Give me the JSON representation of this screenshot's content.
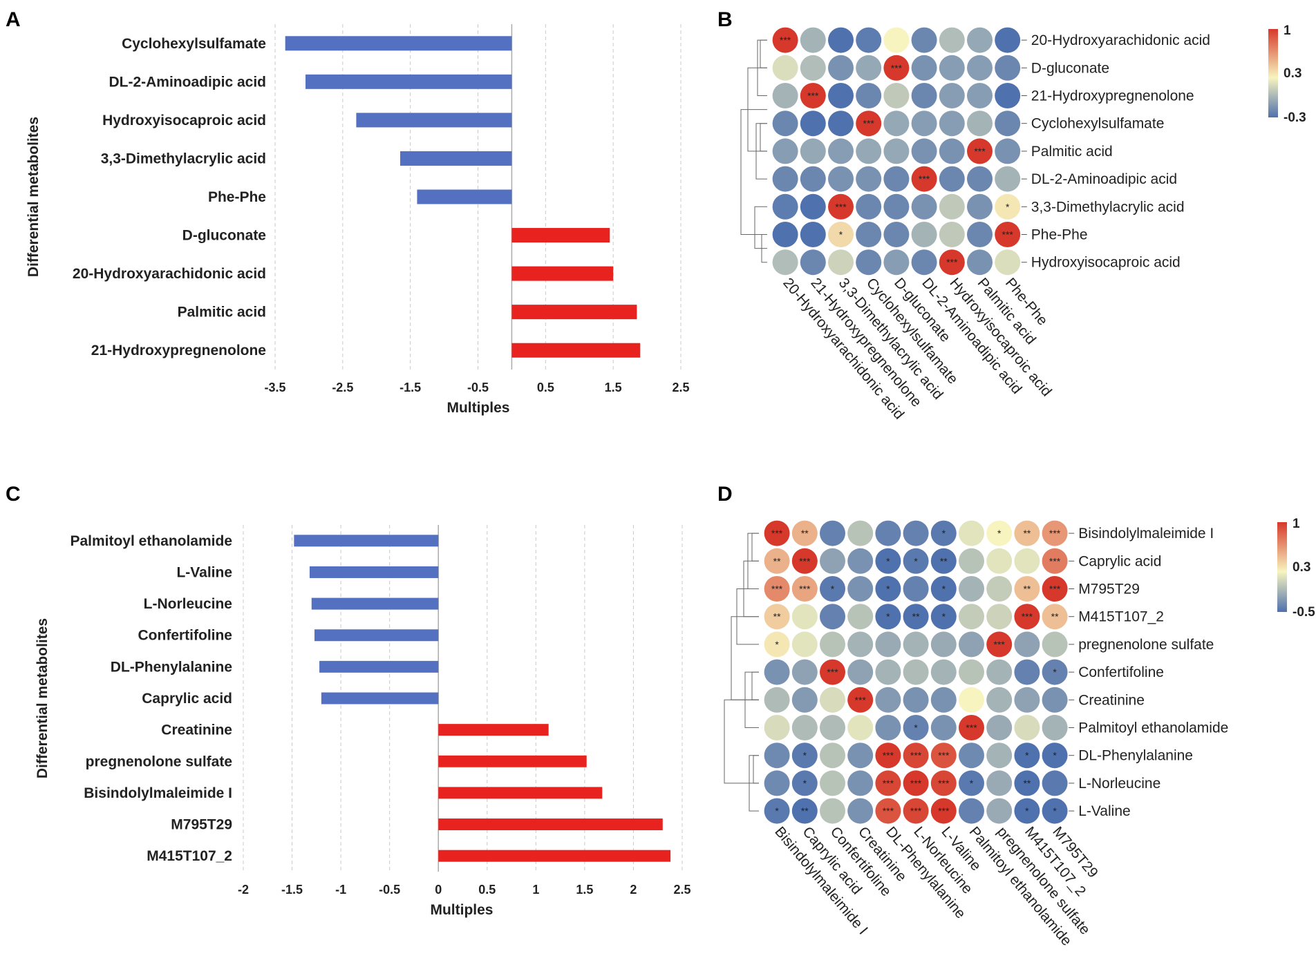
{
  "panels": {
    "A": "A",
    "B": "B",
    "C": "C",
    "D": "D"
  },
  "chart_data": [
    {
      "panel": "A",
      "type": "bar",
      "orientation": "horizontal",
      "title": "",
      "xlabel": "Multiples",
      "ylabel": "Differential metabolites",
      "categories": [
        "Cyclohexylsulfamate",
        "DL-2-Aminoadipic acid",
        "Hydroxyisocaproic acid",
        "3,3-Dimethylacrylic acid",
        "Phe-Phe",
        "D-gluconate",
        "20-Hydroxyarachidonic acid",
        "Palmitic acid",
        "21-Hydroxypregnenolone"
      ],
      "values": [
        -3.35,
        -3.05,
        -2.3,
        -1.65,
        -1.4,
        1.45,
        1.5,
        1.85,
        1.9
      ],
      "xlim": [
        -3.5,
        2.5
      ],
      "xticks": [
        -3.5,
        -2.5,
        -1.5,
        -0.5,
        0.5,
        1.5,
        2.5
      ],
      "xtick_labels": [
        "-3.5",
        "-2.5",
        "-1.5",
        "-0.5",
        "0.5",
        "1.5",
        "2.5"
      ],
      "colors": {
        "negative": "#5470c0",
        "positive": "#e8221e"
      },
      "grid": true
    },
    {
      "panel": "B",
      "type": "heatmap",
      "style": "circle correlation",
      "rows": [
        "20-Hydroxyarachidonic acid",
        "D-gluconate",
        "21-Hydroxypregnenolone",
        "Cyclohexylsulfamate",
        "Palmitic acid",
        "DL-2-Aminoadipic acid",
        "3,3-Dimethylacrylic acid",
        "Phe-Phe",
        "Hydroxyisocaproic acid"
      ],
      "columns": [
        "20-Hydroxyarachidonic acid",
        "21-Hydroxypregnenolone",
        "3,3-Dimethylacrylic acid",
        "Cyclohexylsulfamate",
        "D-gluconate",
        "DL-2-Aminoadipic acid",
        "Hydroxyisocaproic acid",
        "Palmitic acid",
        "Phe-Phe"
      ],
      "values": [
        [
          1,
          0,
          -0.3,
          -0.25,
          0.3,
          -0.2,
          0.05,
          -0.05,
          -0.3
        ],
        [
          0.2,
          0.05,
          -0.15,
          -0.05,
          1,
          -0.15,
          -0.1,
          -0.1,
          -0.2
        ],
        [
          0,
          1,
          -0.35,
          -0.2,
          0.1,
          -0.2,
          -0.1,
          -0.1,
          -0.45
        ],
        [
          -0.2,
          -0.3,
          -0.3,
          1,
          -0.05,
          -0.1,
          -0.1,
          0,
          -0.2
        ],
        [
          -0.1,
          -0.05,
          -0.1,
          -0.05,
          -0.05,
          -0.15,
          -0.15,
          1,
          -0.15
        ],
        [
          -0.2,
          -0.2,
          -0.15,
          -0.15,
          -0.2,
          1,
          -0.2,
          -0.2,
          0
        ],
        [
          -0.25,
          -0.35,
          1,
          -0.2,
          -0.2,
          -0.15,
          0.1,
          -0.15,
          0.35
        ],
        [
          -0.3,
          -0.45,
          0.4,
          -0.2,
          -0.2,
          0,
          0.1,
          -0.2,
          1
        ],
        [
          0.05,
          -0.2,
          0.15,
          -0.2,
          -0.1,
          -0.2,
          1,
          -0.15,
          0.2
        ]
      ],
      "stars": [
        [
          "***",
          "",
          "",
          "",
          "",
          "",
          "",
          "",
          ""
        ],
        [
          "",
          "",
          "",
          "",
          "***",
          "",
          "",
          "",
          ""
        ],
        [
          "",
          "***",
          "",
          "",
          "",
          "",
          "",
          "",
          ""
        ],
        [
          "",
          "",
          "",
          "***",
          "",
          "",
          "",
          "",
          ""
        ],
        [
          "",
          "",
          "",
          "",
          "",
          "",
          "",
          "***",
          ""
        ],
        [
          "",
          "",
          "",
          "",
          "",
          "***",
          "",
          "",
          ""
        ],
        [
          "",
          "",
          "***",
          "",
          "",
          "",
          "",
          "",
          "*"
        ],
        [
          "",
          "",
          "*",
          "",
          "",
          "",
          "",
          "",
          "***"
        ],
        [
          "",
          "",
          "",
          "",
          "",
          "",
          "***",
          "",
          ""
        ]
      ],
      "colorbar": {
        "min": -0.3,
        "max": 1,
        "ticks": [
          "1",
          "0.3",
          "-0.3"
        ],
        "colors": [
          "#4f71ad",
          "#f7f4bf",
          "#d6392b"
        ]
      },
      "dendrogram": "rows"
    },
    {
      "panel": "C",
      "type": "bar",
      "orientation": "horizontal",
      "title": "",
      "xlabel": "Multiples",
      "ylabel": "Differential metabolites",
      "categories": [
        "Palmitoyl ethanolamide",
        "L-Valine",
        "L-Norleucine",
        "Confertifoline",
        "DL-Phenylalanine",
        "Caprylic acid",
        "Creatinine",
        "pregnenolone sulfate",
        "Bisindolylmaleimide I",
        "M795T29",
        "M415T107_2"
      ],
      "values": [
        -1.48,
        -1.32,
        -1.3,
        -1.27,
        -1.22,
        -1.2,
        1.13,
        1.52,
        1.68,
        2.3,
        2.38
      ],
      "xlim": [
        -2,
        2.5
      ],
      "xticks": [
        -2,
        -1.5,
        -1,
        -0.5,
        0,
        0.5,
        1,
        1.5,
        2,
        2.5
      ],
      "xtick_labels": [
        "-2",
        "-1.5",
        "-1",
        "-0.5",
        "0",
        "0.5",
        "1",
        "1.5",
        "2",
        "2.5"
      ],
      "colors": {
        "negative": "#5470c0",
        "positive": "#e8221e"
      },
      "grid": true
    },
    {
      "panel": "D",
      "type": "heatmap",
      "style": "circle correlation",
      "rows": [
        "Bisindolylmaleimide I",
        "Caprylic acid",
        "M795T29",
        "M415T107_2",
        "pregnenolone sulfate",
        "Confertifoline",
        "Creatinine",
        "Palmitoyl ethanolamide",
        "DL-Phenylalanine",
        "L-Norleucine",
        "L-Valine"
      ],
      "columns": [
        "Bisindolylmaleimide I",
        "Caprylic acid",
        "Confertifoline",
        "Creatinine",
        "DL-Phenylalanine",
        "L-Norleucine",
        "L-Valine",
        "Palmitoyl ethanolamide",
        "pregnenolone sulfate",
        "M415T107_2",
        "M795T29"
      ],
      "values": [
        [
          1,
          0.55,
          -0.4,
          0,
          -0.4,
          -0.4,
          -0.45,
          0.2,
          0.3,
          0.5,
          0.65
        ],
        [
          0.55,
          1,
          -0.2,
          -0.3,
          -0.5,
          -0.45,
          -0.55,
          0,
          0.2,
          0.2,
          0.75
        ],
        [
          0.7,
          0.6,
          -0.45,
          -0.3,
          -0.5,
          -0.4,
          -0.5,
          -0.1,
          0.05,
          0.5,
          1
        ],
        [
          0.45,
          0.2,
          -0.4,
          0,
          -0.5,
          -0.55,
          -0.5,
          0.05,
          0.1,
          1,
          0.5
        ],
        [
          0.35,
          0.2,
          0,
          -0.1,
          -0.15,
          -0.1,
          -0.15,
          -0.2,
          1,
          -0.2,
          0
        ],
        [
          -0.3,
          -0.2,
          1,
          -0.2,
          -0.1,
          -0.05,
          -0.1,
          0,
          -0.1,
          -0.4,
          -0.4
        ],
        [
          -0.05,
          -0.25,
          0.15,
          1,
          -0.25,
          -0.3,
          -0.3,
          0.3,
          -0.1,
          -0.2,
          -0.3
        ],
        [
          0.15,
          -0.05,
          -0.05,
          0.2,
          -0.3,
          -0.4,
          -0.3,
          1,
          -0.15,
          0.15,
          -0.1
        ],
        [
          -0.35,
          -0.45,
          0,
          -0.3,
          1,
          0.95,
          0.9,
          -0.35,
          -0.1,
          -0.5,
          -0.5
        ],
        [
          -0.35,
          -0.45,
          0,
          -0.3,
          0.95,
          1,
          0.95,
          -0.45,
          -0.15,
          -0.55,
          -0.45
        ],
        [
          -0.45,
          -0.55,
          0,
          -0.3,
          0.9,
          0.95,
          1,
          -0.4,
          -0.15,
          -0.5,
          -0.5
        ]
      ],
      "stars": [
        [
          "***",
          "**",
          "",
          "",
          "",
          "",
          "*",
          "",
          "*",
          "**",
          "***"
        ],
        [
          "**",
          "***",
          "",
          "",
          "*",
          "*",
          "**",
          "",
          "",
          "",
          "***"
        ],
        [
          "***",
          "***",
          "*",
          "",
          "*",
          "",
          "*",
          "",
          "",
          "**",
          "***"
        ],
        [
          "**",
          "",
          "",
          "",
          "*",
          "**",
          "*",
          "",
          "",
          "***",
          "**"
        ],
        [
          "*",
          "",
          "",
          "",
          "",
          "",
          "",
          "",
          "***",
          "",
          ""
        ],
        [
          "",
          "",
          "***",
          "",
          "",
          "",
          "",
          "",
          "",
          "",
          "*"
        ],
        [
          "",
          "",
          "",
          "***",
          "",
          "",
          "",
          "",
          "",
          "",
          ""
        ],
        [
          "",
          "",
          "",
          "",
          "",
          "*",
          "",
          "***",
          "",
          "",
          ""
        ],
        [
          "",
          "*",
          "",
          "",
          "***",
          "***",
          "***",
          "",
          "",
          "*",
          "*"
        ],
        [
          "",
          "*",
          "",
          "",
          "***",
          "***",
          "***",
          "*",
          "",
          "**",
          ""
        ],
        [
          "*",
          "**",
          "",
          "",
          "***",
          "***",
          "***",
          "",
          "",
          "*",
          "*"
        ]
      ],
      "colorbar": {
        "min": -0.5,
        "max": 1,
        "ticks": [
          "1",
          "0.3",
          "-0.5"
        ],
        "colors": [
          "#4f71ad",
          "#f7f4bf",
          "#d6392b"
        ]
      },
      "dendrogram": "rows"
    }
  ]
}
